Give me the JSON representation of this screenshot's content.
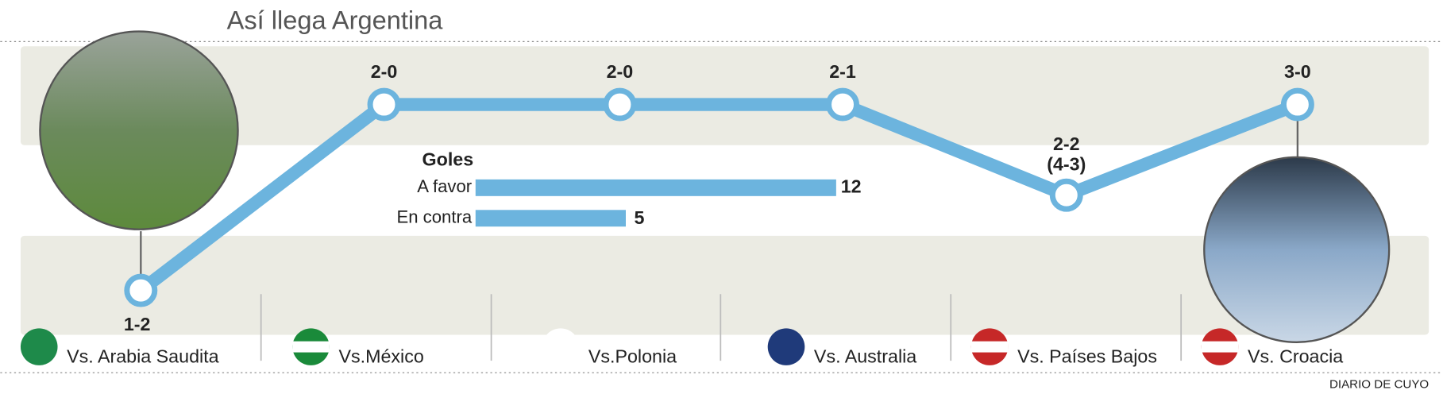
{
  "title": "Así llega Argentina",
  "matches": [
    {
      "result": "1-2",
      "opponent": "Vs. Arabia Saudita"
    },
    {
      "result": "2-0",
      "opponent": "Vs.México"
    },
    {
      "result": "2-0",
      "opponent": "Vs.Polonia"
    },
    {
      "result": "2-1",
      "opponent": "Vs. Australia"
    },
    {
      "result": "2-2",
      "penalties": "(4-3)",
      "opponent": "Vs. Países Bajos"
    },
    {
      "result": "3-0",
      "opponent": "Vs. Croacia"
    }
  ],
  "goals": {
    "title": "Goles",
    "bars": [
      {
        "label": "A favor",
        "value": 12
      },
      {
        "label": "En contra",
        "value": 5
      }
    ]
  },
  "source": "DIARIO DE CUYO"
}
